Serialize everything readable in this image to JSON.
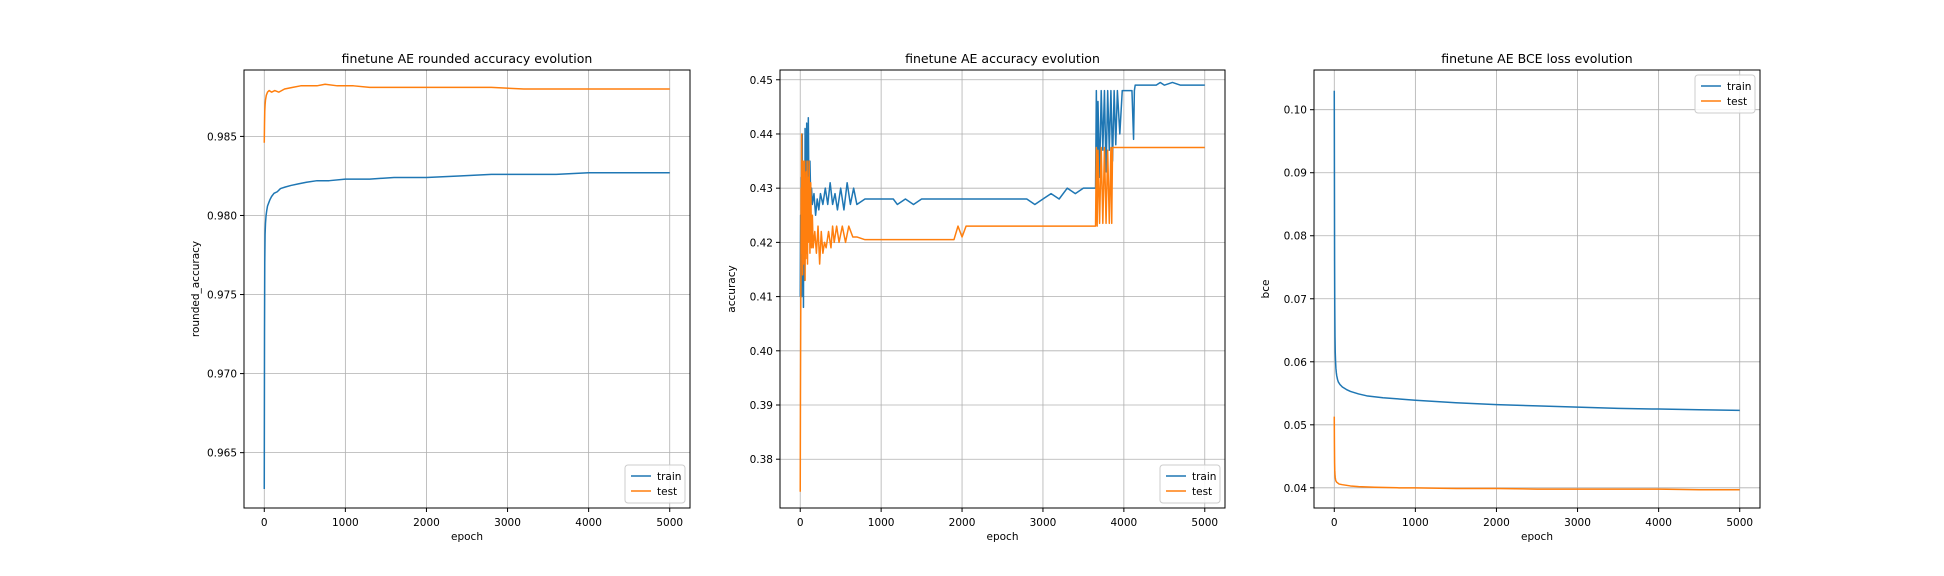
{
  "figure": {
    "colors": {
      "train": "#1f77b4",
      "test": "#ff7f0e",
      "grid": "#b0b0b0"
    }
  },
  "chart_data": [
    {
      "type": "line",
      "title": "finetune AE rounded accuracy evolution",
      "xlabel": "epoch",
      "ylabel": "rounded_accuracy",
      "xlim": [
        -250,
        5250
      ],
      "ylim": [
        0.9615,
        0.9892
      ],
      "xticks": [
        0,
        1000,
        2000,
        3000,
        4000,
        5000
      ],
      "yticks": [
        0.965,
        0.97,
        0.975,
        0.98,
        0.985
      ],
      "ytick_labels": [
        "0.965",
        "0.970",
        "0.975",
        "0.980",
        "0.985"
      ],
      "grid": true,
      "legend_position": "lower-right",
      "series": [
        {
          "name": "train",
          "color": "#1f77b4",
          "x": [
            0,
            3,
            6,
            10,
            15,
            22,
            30,
            40,
            55,
            70,
            90,
            120,
            160,
            200,
            260,
            330,
            420,
            520,
            650,
            800,
            1000,
            1300,
            1600,
            2000,
            2400,
            2800,
            3200,
            3600,
            4000,
            4400,
            4800,
            5000
          ],
          "y": [
            0.9627,
            0.9725,
            0.977,
            0.9788,
            0.9795,
            0.98,
            0.9803,
            0.9806,
            0.9808,
            0.981,
            0.9812,
            0.9814,
            0.9815,
            0.9817,
            0.9818,
            0.9819,
            0.982,
            0.9821,
            0.9822,
            0.9822,
            0.9823,
            0.9823,
            0.9824,
            0.9824,
            0.9825,
            0.9826,
            0.9826,
            0.9826,
            0.9827,
            0.9827,
            0.9827,
            0.9827
          ]
        },
        {
          "name": "test",
          "color": "#ff7f0e",
          "x": [
            0,
            3,
            6,
            10,
            15,
            25,
            40,
            60,
            90,
            130,
            180,
            250,
            350,
            450,
            550,
            650,
            750,
            900,
            1100,
            1300,
            1600,
            2000,
            2400,
            2800,
            3200,
            3600,
            4000,
            4400,
            4800,
            5000
          ],
          "y": [
            0.9846,
            0.9858,
            0.9866,
            0.987,
            0.9873,
            0.9876,
            0.9878,
            0.9879,
            0.9878,
            0.9879,
            0.9878,
            0.988,
            0.9881,
            0.9882,
            0.9882,
            0.9882,
            0.9883,
            0.9882,
            0.9882,
            0.9881,
            0.9881,
            0.9881,
            0.9881,
            0.9881,
            0.988,
            0.988,
            0.988,
            0.988,
            0.988,
            0.988
          ]
        }
      ]
    },
    {
      "type": "line",
      "title": "finetune AE accuracy evolution",
      "xlabel": "epoch",
      "ylabel": "accuracy",
      "xlim": [
        -250,
        5250
      ],
      "ylim": [
        0.371,
        0.4518
      ],
      "xticks": [
        0,
        1000,
        2000,
        3000,
        4000,
        5000
      ],
      "yticks": [
        0.38,
        0.39,
        0.4,
        0.41,
        0.42,
        0.43,
        0.44,
        0.45
      ],
      "ytick_labels": [
        "0.38",
        "0.39",
        "0.40",
        "0.41",
        "0.42",
        "0.43",
        "0.44",
        "0.45"
      ],
      "grid": true,
      "legend_position": "lower-right",
      "series": [
        {
          "name": "train",
          "color": "#1f77b4",
          "x": [
            0,
            5,
            10,
            15,
            20,
            25,
            30,
            35,
            40,
            45,
            50,
            55,
            60,
            65,
            70,
            75,
            80,
            85,
            90,
            95,
            100,
            110,
            120,
            130,
            140,
            150,
            170,
            190,
            210,
            230,
            250,
            280,
            310,
            340,
            370,
            400,
            430,
            460,
            500,
            540,
            580,
            620,
            660,
            700,
            800,
            1000,
            1150,
            1200,
            1300,
            1400,
            1500,
            1600,
            1700,
            2000,
            2500,
            2800,
            2900,
            3000,
            3100,
            3200,
            3300,
            3400,
            3500,
            3600,
            3650,
            3660,
            3670,
            3680,
            3700,
            3720,
            3740,
            3760,
            3780,
            3800,
            3820,
            3840,
            3860,
            3880,
            3900,
            3920,
            3950,
            3980,
            4000,
            4050,
            4100,
            4120,
            4130,
            4140,
            4200,
            4300,
            4400,
            4450,
            4500,
            4600,
            4700,
            4800,
            4900,
            5000
          ],
          "y": [
            0.41,
            0.425,
            0.415,
            0.432,
            0.41,
            0.44,
            0.412,
            0.435,
            0.408,
            0.433,
            0.43,
            0.413,
            0.441,
            0.422,
            0.432,
            0.426,
            0.442,
            0.423,
            0.436,
            0.428,
            0.443,
            0.425,
            0.435,
            0.428,
            0.43,
            0.427,
            0.429,
            0.425,
            0.428,
            0.426,
            0.429,
            0.427,
            0.43,
            0.427,
            0.431,
            0.427,
            0.429,
            0.426,
            0.43,
            0.426,
            0.431,
            0.427,
            0.43,
            0.427,
            0.428,
            0.428,
            0.428,
            0.427,
            0.428,
            0.427,
            0.428,
            0.428,
            0.428,
            0.428,
            0.428,
            0.428,
            0.427,
            0.428,
            0.429,
            0.428,
            0.43,
            0.429,
            0.43,
            0.43,
            0.43,
            0.448,
            0.43,
            0.446,
            0.432,
            0.448,
            0.437,
            0.448,
            0.433,
            0.448,
            0.437,
            0.448,
            0.435,
            0.448,
            0.438,
            0.448,
            0.44,
            0.448,
            0.448,
            0.448,
            0.448,
            0.439,
            0.448,
            0.449,
            0.449,
            0.449,
            0.449,
            0.4495,
            0.449,
            0.4495,
            0.449,
            0.449,
            0.449,
            0.449
          ]
        },
        {
          "name": "test",
          "color": "#ff7f0e",
          "x": [
            0,
            3,
            6,
            9,
            12,
            15,
            18,
            21,
            25,
            30,
            35,
            40,
            45,
            50,
            55,
            60,
            65,
            70,
            75,
            80,
            85,
            90,
            95,
            100,
            110,
            120,
            130,
            140,
            150,
            160,
            180,
            200,
            220,
            240,
            260,
            280,
            300,
            320,
            350,
            380,
            400,
            420,
            450,
            480,
            520,
            560,
            600,
            650,
            700,
            800,
            1000,
            1500,
            1900,
            1950,
            2000,
            2050,
            2100,
            2500,
            3000,
            3500,
            3650,
            3660,
            3670,
            3680,
            3700,
            3720,
            3740,
            3760,
            3780,
            3800,
            3820,
            3840,
            3850,
            3860,
            4000,
            4500,
            5000
          ],
          "y": [
            0.374,
            0.392,
            0.405,
            0.415,
            0.43,
            0.42,
            0.44,
            0.418,
            0.433,
            0.414,
            0.435,
            0.416,
            0.433,
            0.419,
            0.435,
            0.413,
            0.43,
            0.417,
            0.433,
            0.418,
            0.435,
            0.416,
            0.432,
            0.42,
            0.435,
            0.418,
            0.431,
            0.419,
            0.425,
            0.419,
            0.422,
            0.418,
            0.423,
            0.416,
            0.422,
            0.418,
            0.42,
            0.419,
            0.422,
            0.419,
            0.423,
            0.42,
            0.423,
            0.42,
            0.423,
            0.42,
            0.423,
            0.421,
            0.421,
            0.4205,
            0.4205,
            0.4205,
            0.4205,
            0.423,
            0.421,
            0.423,
            0.423,
            0.423,
            0.423,
            0.423,
            0.423,
            0.4375,
            0.423,
            0.437,
            0.4235,
            0.4375,
            0.4235,
            0.4375,
            0.4235,
            0.437,
            0.4235,
            0.4375,
            0.4235,
            0.4375,
            0.4375,
            0.4375,
            0.4375
          ]
        }
      ]
    },
    {
      "type": "line",
      "title": "finetune AE BCE loss evolution",
      "xlabel": "epoch",
      "ylabel": "bce",
      "xlim": [
        -250,
        5250
      ],
      "ylim": [
        0.0368,
        0.1063
      ],
      "xticks": [
        0,
        1000,
        2000,
        3000,
        4000,
        5000
      ],
      "yticks": [
        0.04,
        0.05,
        0.06,
        0.07,
        0.08,
        0.09,
        0.1
      ],
      "ytick_labels": [
        "0.04",
        "0.05",
        "0.06",
        "0.07",
        "0.08",
        "0.09",
        "0.10"
      ],
      "grid": true,
      "legend_position": "upper-right",
      "series": [
        {
          "name": "train",
          "color": "#1f77b4",
          "x": [
            0,
            2,
            4,
            6,
            9,
            12,
            16,
            20,
            25,
            30,
            40,
            50,
            70,
            100,
            150,
            200,
            300,
            400,
            600,
            800,
            1000,
            1500,
            2000,
            2500,
            3000,
            3500,
            4000,
            4500,
            5000
          ],
          "y": [
            0.103,
            0.09,
            0.076,
            0.069,
            0.064,
            0.0615,
            0.06,
            0.059,
            0.0583,
            0.0578,
            0.0572,
            0.0568,
            0.0564,
            0.056,
            0.0556,
            0.0553,
            0.0549,
            0.0546,
            0.0543,
            0.0541,
            0.0539,
            0.0535,
            0.0532,
            0.053,
            0.0528,
            0.0526,
            0.0525,
            0.0524,
            0.0523
          ]
        },
        {
          "name": "test",
          "color": "#ff7f0e",
          "x": [
            0,
            2,
            4,
            6,
            9,
            12,
            16,
            20,
            30,
            40,
            60,
            100,
            150,
            200,
            300,
            500,
            800,
            1000,
            1500,
            2000,
            2500,
            3000,
            3500,
            4000,
            4500,
            5000
          ],
          "y": [
            0.0513,
            0.047,
            0.044,
            0.0428,
            0.042,
            0.0416,
            0.0413,
            0.0411,
            0.0409,
            0.0408,
            0.0406,
            0.0405,
            0.0404,
            0.0403,
            0.0402,
            0.0401,
            0.04,
            0.04,
            0.0399,
            0.0399,
            0.0398,
            0.0398,
            0.0398,
            0.0398,
            0.0397,
            0.0397
          ]
        }
      ]
    }
  ]
}
